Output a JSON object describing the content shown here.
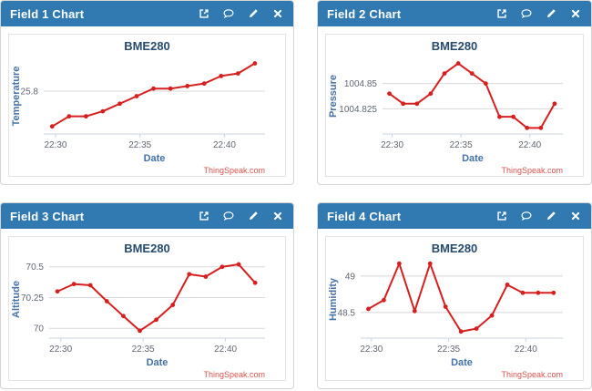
{
  "colors": {
    "header_bg": "#3179b1",
    "header_text": "#ffffff",
    "line": "#d62020",
    "marker": "#d62020",
    "grid": "#d8d8d8",
    "axis_line": "#c9d6e2",
    "tick_label": "#606673",
    "axis_title": "#4572a7",
    "chart_title": "#274b6d",
    "credits": "#d9534f",
    "panel_border": "#d4d4d4"
  },
  "panel_icons": [
    {
      "name": "external-link-icon"
    },
    {
      "name": "comment-icon"
    },
    {
      "name": "edit-icon"
    },
    {
      "name": "close-icon"
    }
  ],
  "panels": [
    {
      "title": "Field 1 Chart",
      "chart_data": {
        "type": "line",
        "title": "BME280",
        "xlabel": "Date",
        "ylabel": "Temperature",
        "credits": "ThingSpeak.com",
        "grid": true,
        "legend": "none",
        "x_minutes_after_2200": [
          29.8,
          30.8,
          31.8,
          32.8,
          33.8,
          34.8,
          35.8,
          36.8,
          37.8,
          38.8,
          39.8,
          40.8,
          41.8
        ],
        "values": [
          25.66,
          25.7,
          25.7,
          25.72,
          25.75,
          25.78,
          25.81,
          25.81,
          25.82,
          25.83,
          25.86,
          25.87,
          25.91
        ],
        "xlim": [
          29.3,
          42.4
        ],
        "ylim": [
          25.63,
          25.93
        ],
        "x_ticks": [
          {
            "v": 30,
            "label": "22:30"
          },
          {
            "v": 35,
            "label": "22:35"
          },
          {
            "v": 40,
            "label": "22:40"
          }
        ],
        "y_ticks": [
          {
            "v": 25.8,
            "label": "25.8"
          }
        ]
      }
    },
    {
      "title": "Field 2 Chart",
      "chart_data": {
        "type": "line",
        "title": "BME280",
        "xlabel": "Date",
        "ylabel": "Pressure",
        "credits": "ThingSpeak.com",
        "grid": true,
        "legend": "none",
        "x_minutes_after_2200": [
          29.8,
          30.8,
          31.8,
          32.8,
          33.8,
          34.8,
          35.8,
          36.8,
          37.8,
          38.8,
          39.8,
          40.8,
          41.8
        ],
        "values": [
          1004.84,
          1004.83,
          1004.83,
          1004.84,
          1004.86,
          1004.87,
          1004.86,
          1004.85,
          1004.817,
          1004.817,
          1004.806,
          1004.806,
          1004.83
        ],
        "xlim": [
          29.3,
          42.4
        ],
        "ylim": [
          1004.8,
          1004.875
        ],
        "x_ticks": [
          {
            "v": 30,
            "label": "22:30"
          },
          {
            "v": 35,
            "label": "22:35"
          },
          {
            "v": 40,
            "label": "22:40"
          }
        ],
        "y_ticks": [
          {
            "v": 1004.825,
            "label": "1004.825"
          },
          {
            "v": 1004.85,
            "label": "1004.85"
          }
        ]
      }
    },
    {
      "title": "Field 3 Chart",
      "chart_data": {
        "type": "line",
        "title": "BME280",
        "xlabel": "Date",
        "ylabel": "Altitude",
        "credits": "ThingSpeak.com",
        "grid": true,
        "legend": "none",
        "x_minutes_after_2200": [
          29.8,
          30.8,
          31.8,
          32.8,
          33.8,
          34.8,
          35.8,
          36.8,
          37.8,
          38.8,
          39.8,
          40.8,
          41.8
        ],
        "values": [
          70.3,
          70.36,
          70.35,
          70.22,
          70.1,
          69.98,
          70.07,
          70.19,
          70.44,
          70.42,
          70.5,
          70.52,
          70.37
        ],
        "xlim": [
          29.3,
          42.4
        ],
        "ylim": [
          69.92,
          70.55
        ],
        "x_ticks": [
          {
            "v": 30,
            "label": "22:30"
          },
          {
            "v": 35,
            "label": "22:35"
          },
          {
            "v": 40,
            "label": "22:40"
          }
        ],
        "y_ticks": [
          {
            "v": 70,
            "label": "70"
          },
          {
            "v": 70.25,
            "label": "70.25"
          },
          {
            "v": 70.5,
            "label": "70.5"
          }
        ]
      }
    },
    {
      "title": "Field 4 Chart",
      "chart_data": {
        "type": "line",
        "title": "BME280",
        "xlabel": "Date",
        "ylabel": "Humidity",
        "credits": "ThingSpeak.com",
        "grid": true,
        "legend": "none",
        "x_minutes_after_2200": [
          29.8,
          30.8,
          31.8,
          32.8,
          33.8,
          34.8,
          35.8,
          36.8,
          37.8,
          38.8,
          39.8,
          40.8,
          41.8
        ],
        "values": [
          48.55,
          48.67,
          49.17,
          48.52,
          49.17,
          48.58,
          48.24,
          48.28,
          48.46,
          48.88,
          48.77,
          48.77,
          48.77
        ],
        "xlim": [
          29.3,
          42.4
        ],
        "ylim": [
          48.15,
          49.21
        ],
        "x_ticks": [
          {
            "v": 30,
            "label": "22:30"
          },
          {
            "v": 35,
            "label": "22:35"
          },
          {
            "v": 40,
            "label": "22:40"
          }
        ],
        "y_ticks": [
          {
            "v": 48.5,
            "label": "48.5"
          },
          {
            "v": 49,
            "label": "49"
          }
        ]
      }
    }
  ]
}
